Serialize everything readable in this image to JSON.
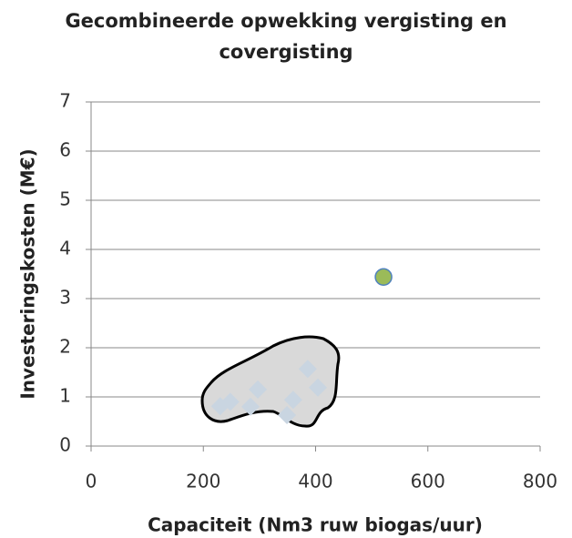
{
  "chart_data": {
    "type": "scatter",
    "title": [
      "Gecombineerde opwekking vergisting en",
      "covergisting"
    ],
    "x_label": "Capaciteit (Nm3 ruw biogas/uur)",
    "y_label": "Investeringskosten (M€)",
    "xlim": [
      0,
      800
    ],
    "xticks": [
      0,
      200,
      400,
      600,
      800
    ],
    "ylim": [
      0,
      7
    ],
    "yticks": [
      0,
      1,
      2,
      3,
      4,
      5,
      6,
      7
    ],
    "grid": true,
    "series": [
      {
        "marker": "diamond",
        "color": "#c9d5e1",
        "x": [
          230,
          248,
          284,
          297,
          349,
          360,
          386,
          404
        ],
        "values": [
          0.81,
          0.9,
          0.8,
          1.15,
          0.63,
          0.94,
          1.57,
          1.19
        ]
      },
      {
        "marker": "circle",
        "color": "#9bbb59",
        "x": [
          521
        ],
        "values": [
          3.44
        ]
      }
    ]
  }
}
